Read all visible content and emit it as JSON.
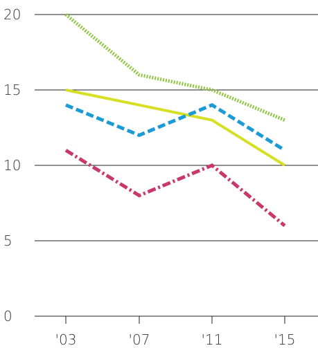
{
  "chart_data": {
    "type": "line",
    "title": "",
    "xlabel": "",
    "ylabel": "",
    "categories": [
      "'03",
      "'07",
      "'11",
      "'15"
    ],
    "ylim": [
      0,
      20
    ],
    "y_ticks": [
      "0",
      "5",
      "10",
      "15",
      "20"
    ],
    "grid": "horizontal",
    "series": [
      {
        "values": [
          20,
          16,
          15,
          13
        ],
        "color": "#8dc63f",
        "style": "dotted"
      },
      {
        "values": [
          15,
          14,
          13,
          10
        ],
        "color": "#d7df23",
        "style": "solid"
      },
      {
        "values": [
          14,
          12,
          14,
          11
        ],
        "color": "#1c9ad6",
        "style": "dashed"
      },
      {
        "values": [
          11,
          8,
          10,
          6
        ],
        "color": "#c8386b",
        "style": "dashdot"
      }
    ]
  }
}
